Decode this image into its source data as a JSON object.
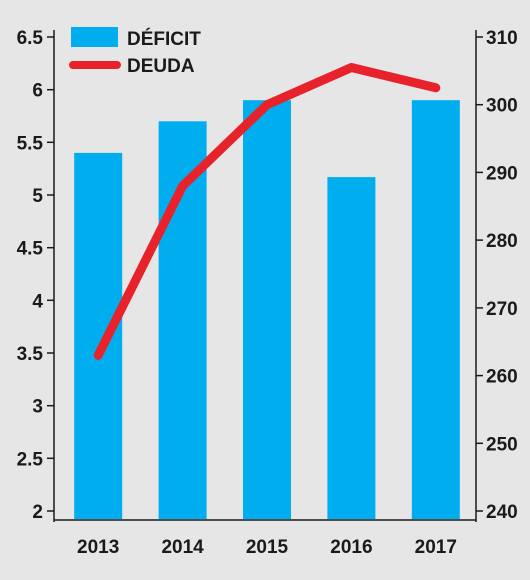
{
  "chart_data": {
    "type": "bar+line",
    "categories": [
      "2013",
      "2014",
      "2015",
      "2016",
      "2017"
    ],
    "series": [
      {
        "name": "DÉFICIT",
        "type": "bar",
        "axis": "left",
        "color": "#00aeef",
        "values": [
          5.4,
          5.7,
          5.9,
          5.17,
          5.9
        ]
      },
      {
        "name": "DEUDA",
        "type": "line",
        "axis": "right",
        "color": "#e8222a",
        "values": [
          263,
          288,
          300,
          305.5,
          302.5
        ]
      }
    ],
    "y_left": {
      "ticks": [
        "2",
        "2.5",
        "3",
        "3.5",
        "4",
        "4.5",
        "5",
        "5.5",
        "6",
        "6.5"
      ],
      "range": [
        2,
        6.5
      ]
    },
    "y_right": {
      "ticks": [
        "240",
        "250",
        "260",
        "270",
        "280",
        "290",
        "300",
        "310"
      ],
      "range": [
        240,
        310
      ]
    },
    "grid": false,
    "legend_position": "top-left",
    "background": "#e6e6e6"
  }
}
